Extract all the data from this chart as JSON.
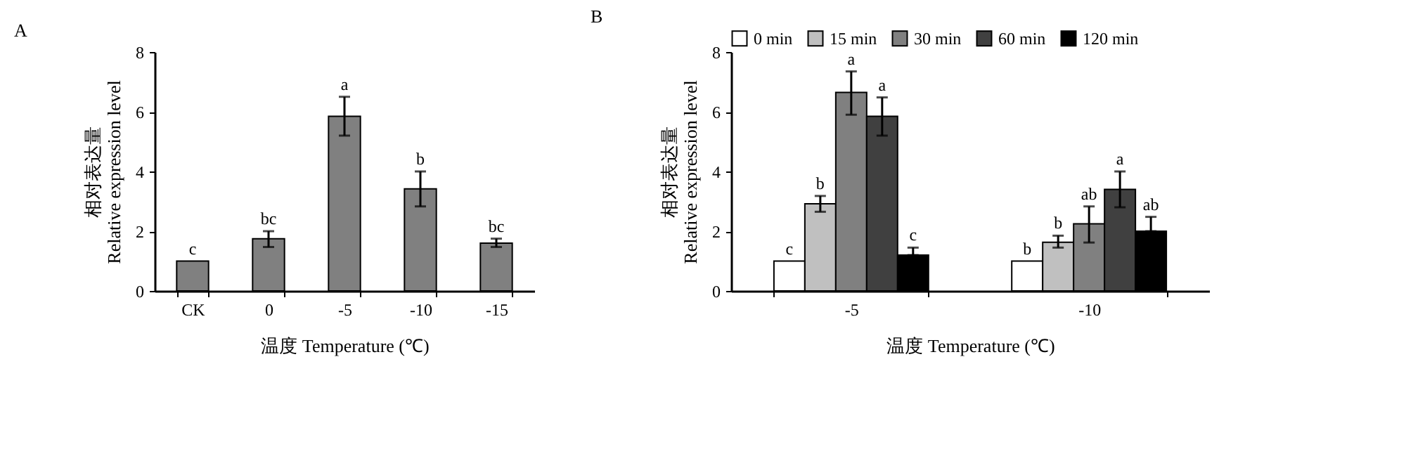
{
  "chart_data": [
    {
      "type": "bar",
      "title": "A",
      "xlabel": "温度 Temperature (℃)",
      "ylabel": [
        "相对表达量",
        "Relative expression level"
      ],
      "categories": [
        "CK",
        "0",
        "-5",
        "-10",
        "-15"
      ],
      "series": [
        {
          "color": "#808080",
          "values": [
            1.0,
            1.75,
            5.85,
            3.42,
            1.6
          ],
          "errors": [
            null,
            [
              1.47,
              2.0
            ],
            [
              5.2,
              6.5
            ],
            [
              2.83,
              4.0
            ],
            [
              1.47,
              1.75
            ]
          ],
          "value_labels": [
            "c",
            "bc",
            "a",
            "b",
            "bc"
          ]
        }
      ],
      "ylim": [
        0,
        8
      ],
      "yticks": [
        0,
        2,
        4,
        6,
        8
      ]
    },
    {
      "type": "bar",
      "title": "B",
      "xlabel": "温度 Temperature (℃)",
      "ylabel": [
        "相对表达量",
        "Relative expression level"
      ],
      "categories": [
        "-5",
        "-10"
      ],
      "series": [
        {
          "name": "0 min",
          "color": "#ffffff",
          "values": [
            1.0,
            1.0
          ],
          "errors": [
            null,
            null
          ],
          "value_labels": [
            "c",
            "b"
          ]
        },
        {
          "name": "15 min",
          "color": "#c0c0c0",
          "values": [
            2.92,
            1.63
          ],
          "errors": [
            [
              2.65,
              3.18
            ],
            [
              1.45,
              1.85
            ]
          ],
          "value_labels": [
            "b",
            "b"
          ]
        },
        {
          "name": "30 min",
          "color": "#808080",
          "values": [
            6.65,
            2.25
          ],
          "errors": [
            [
              5.9,
              7.35
            ],
            [
              1.62,
              2.83
            ]
          ],
          "value_labels": [
            "a",
            "ab"
          ]
        },
        {
          "name": "60 min",
          "color": "#404040",
          "values": [
            5.85,
            3.4
          ],
          "errors": [
            [
              5.2,
              6.48
            ],
            [
              2.8,
              4.0
            ]
          ],
          "value_labels": [
            "a",
            "a"
          ]
        },
        {
          "name": "120 min",
          "color": "#000000",
          "values": [
            1.2,
            2.0
          ],
          "errors": [
            [
              1.2,
              1.45
            ],
            [
              2.0,
              2.48
            ]
          ],
          "value_labels": [
            "c",
            "ab"
          ]
        }
      ],
      "ylim": [
        0,
        8
      ],
      "yticks": [
        0,
        2,
        4,
        6,
        8
      ],
      "legend": "top"
    }
  ]
}
